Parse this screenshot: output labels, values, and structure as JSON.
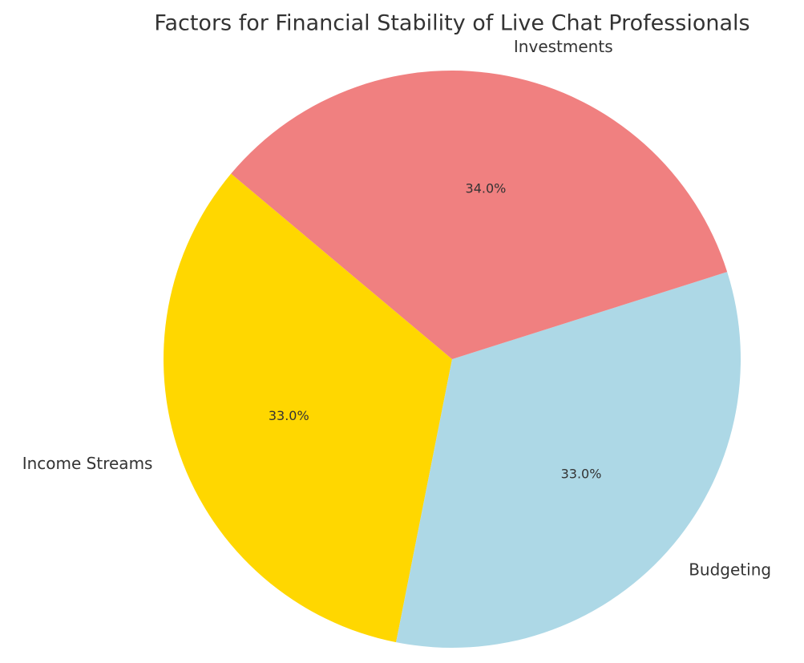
{
  "chart_data": {
    "type": "pie",
    "title": "Factors for Financial Stability of Live Chat Professionals",
    "categories": [
      "Income Streams",
      "Budgeting",
      "Investments"
    ],
    "values": [
      33,
      33,
      34
    ],
    "value_labels": [
      "33.0%",
      "33.0%",
      "34.0%"
    ],
    "colors": [
      "#ffd700",
      "#add8e6",
      "#f08080"
    ],
    "start_angle": 140
  }
}
